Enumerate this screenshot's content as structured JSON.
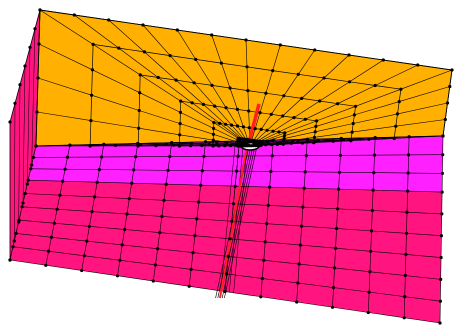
{
  "colors": {
    "top_face": "#FFB000",
    "layer_magenta": "#FF20FF",
    "layer_pink": "#FF1480",
    "side_face": "#FF1480",
    "mesh_lines": "#000000",
    "pile": "#FF2020"
  },
  "mesh": {
    "columns": 12,
    "top_rings": 6,
    "depth_bands": [
      {
        "name": "magenta-layer",
        "count": 3
      },
      {
        "name": "pink-layer",
        "count": 6
      }
    ]
  },
  "icons": {
    "pile": "vertical-pile-element"
  }
}
